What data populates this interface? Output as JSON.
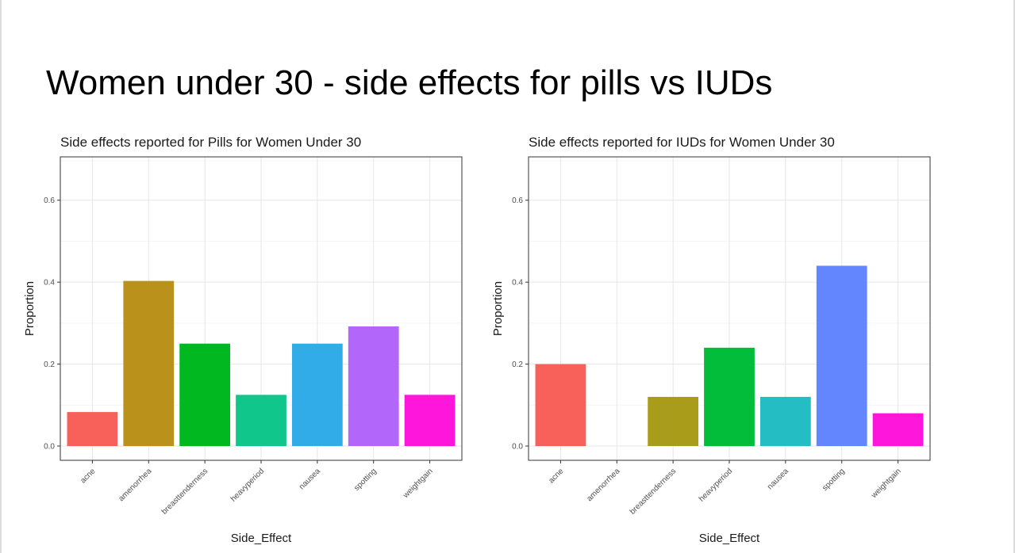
{
  "slide": {
    "title": "Women under 30 - side effects for pills vs IUDs"
  },
  "chart_data": [
    {
      "type": "bar",
      "title": "Side effects reported for Pills for Women Under 30",
      "xlabel": "Side_Effect",
      "ylabel": "Proportion",
      "ylim": [
        0,
        0.7
      ],
      "yticks": [
        0.0,
        0.2,
        0.4,
        0.6
      ],
      "ytick_labels": [
        "0.0",
        "0.2",
        "0.4",
        "0.6"
      ],
      "grid": true,
      "legend": "none",
      "categories": [
        "acne",
        "amenorrhea",
        "breasttenderness",
        "heavyperiod",
        "nausea",
        "spotting",
        "weightgain"
      ],
      "values": [
        0.083,
        0.403,
        0.25,
        0.125,
        0.25,
        0.292,
        0.125
      ],
      "colors": [
        "#F8605A",
        "#BA921B",
        "#01B820",
        "#10C68A",
        "#31ACE8",
        "#B266FA",
        "#FE16DB"
      ]
    },
    {
      "type": "bar",
      "title": "Side effects reported for IUDs for Women Under 30",
      "xlabel": "Side_Effect",
      "ylabel": "Proportion",
      "ylim": [
        0,
        0.7
      ],
      "yticks": [
        0.0,
        0.2,
        0.4,
        0.6
      ],
      "ytick_labels": [
        "0.0",
        "0.2",
        "0.4",
        "0.6"
      ],
      "grid": true,
      "legend": "none",
      "categories": [
        "acne",
        "amenorrhea",
        "breasttenderness",
        "heavyperiod",
        "nausea",
        "spotting",
        "weightgain"
      ],
      "values": [
        0.2,
        0.0,
        0.12,
        0.24,
        0.12,
        0.44,
        0.08
      ],
      "colors": [
        "#F8605A",
        "#C49A00",
        "#A89C1A",
        "#01BD3A",
        "#24BDC4",
        "#6385FE",
        "#FE16DB"
      ]
    }
  ]
}
